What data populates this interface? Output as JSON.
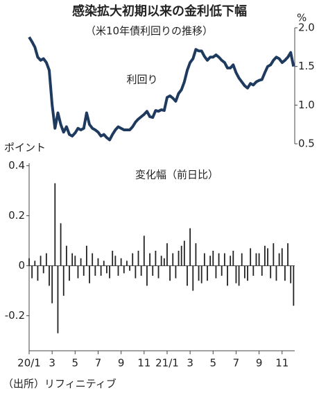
{
  "chart_data": [
    {
      "type": "line",
      "title": "感染拡大初期以来の金利低下幅",
      "subtitle": "（米10年債利回りの推移）",
      "label": "利回り",
      "y_unit": "%",
      "color": "#1f3a5f",
      "y_axis_side": "right",
      "x": [
        0,
        0.25,
        0.5,
        0.75,
        1,
        1.25,
        1.5,
        1.75,
        2,
        2.25,
        2.5,
        2.75,
        3,
        3.25,
        3.5,
        3.75,
        4,
        4.25,
        4.5,
        4.75,
        5,
        5.25,
        5.5,
        5.75,
        6,
        6.25,
        6.5,
        6.75,
        7,
        7.25,
        7.5,
        7.75,
        8,
        8.25,
        8.5,
        8.75,
        9,
        9.25,
        9.5,
        9.75,
        10,
        10.25,
        10.5,
        10.75,
        11,
        11.25,
        11.5,
        11.75,
        12,
        12.25,
        12.5,
        12.75,
        13,
        13.25,
        13.5,
        13.75,
        14,
        14.25,
        14.5,
        14.75,
        15,
        15.25,
        15.5,
        15.75,
        16,
        16.25,
        16.5,
        16.75,
        17,
        17.25,
        17.5,
        17.75,
        18,
        18.25,
        18.5,
        18.75,
        19,
        19.25,
        19.5,
        19.75,
        20,
        20.25,
        20.5,
        20.75,
        21,
        21.25,
        21.5,
        21.75,
        22,
        22.25,
        22.5,
        22.75,
        23
      ],
      "values": [
        1.88,
        1.82,
        1.75,
        1.62,
        1.58,
        1.6,
        1.55,
        1.45,
        1.0,
        0.7,
        0.9,
        0.75,
        0.65,
        0.72,
        0.62,
        0.6,
        0.64,
        0.7,
        0.68,
        0.7,
        0.9,
        0.75,
        0.7,
        0.68,
        0.65,
        0.6,
        0.62,
        0.58,
        0.55,
        0.62,
        0.68,
        0.72,
        0.7,
        0.68,
        0.68,
        0.68,
        0.72,
        0.78,
        0.82,
        0.85,
        0.88,
        0.92,
        0.85,
        0.84,
        0.93,
        0.92,
        0.94,
        0.93,
        1.1,
        1.12,
        1.09,
        1.05,
        1.15,
        1.2,
        1.3,
        1.45,
        1.55,
        1.6,
        1.72,
        1.7,
        1.7,
        1.63,
        1.58,
        1.62,
        1.62,
        1.65,
        1.62,
        1.58,
        1.55,
        1.48,
        1.48,
        1.52,
        1.42,
        1.35,
        1.3,
        1.25,
        1.22,
        1.28,
        1.26,
        1.3,
        1.32,
        1.33,
        1.42,
        1.5,
        1.52,
        1.58,
        1.62,
        1.6,
        1.55,
        1.58,
        1.62,
        1.68,
        1.5
      ],
      "xlim": [
        0,
        23.1
      ],
      "ylim": [
        0.5,
        2.0
      ],
      "yticks": [
        0.5,
        {
          "value": 1,
          "label": "1.0"
        },
        1.5,
        {
          "value": 2,
          "label": "2.0"
        }
      ]
    },
    {
      "type": "bar",
      "label": "変化幅（前日比）",
      "y_unit": "ポイント",
      "color": "#222222",
      "x": [
        0,
        0.25,
        0.5,
        0.75,
        1,
        1.25,
        1.5,
        1.75,
        2,
        2.25,
        2.5,
        2.75,
        3,
        3.25,
        3.5,
        3.75,
        4,
        4.25,
        4.5,
        4.75,
        5,
        5.25,
        5.5,
        5.75,
        6,
        6.25,
        6.5,
        6.75,
        7,
        7.25,
        7.5,
        7.75,
        8,
        8.25,
        8.5,
        8.75,
        9,
        9.25,
        9.5,
        9.75,
        10,
        10.25,
        10.5,
        10.75,
        11,
        11.25,
        11.5,
        11.75,
        12,
        12.25,
        12.5,
        12.75,
        13,
        13.25,
        13.5,
        13.75,
        14,
        14.25,
        14.5,
        14.75,
        15,
        15.25,
        15.5,
        15.75,
        16,
        16.25,
        16.5,
        16.75,
        17,
        17.25,
        17.5,
        17.75,
        18,
        18.25,
        18.5,
        18.75,
        19,
        19.25,
        19.5,
        19.75,
        20,
        20.25,
        20.5,
        20.75,
        21,
        21.25,
        21.5,
        21.75,
        22,
        22.25,
        22.5,
        22.75,
        23
      ],
      "values": [
        0.03,
        -0.05,
        0.02,
        -0.06,
        0.04,
        -0.03,
        0.05,
        -0.08,
        -0.15,
        0.33,
        -0.27,
        0.17,
        -0.12,
        0.08,
        -0.06,
        0.05,
        0.04,
        -0.05,
        0.03,
        -0.04,
        0.08,
        -0.07,
        0.05,
        -0.04,
        0.03,
        -0.04,
        0.02,
        -0.03,
        -0.05,
        0.06,
        0.04,
        -0.04,
        0.03,
        -0.03,
        0.02,
        -0.02,
        0.05,
        -0.05,
        0.06,
        -0.04,
        0.12,
        -0.08,
        0.05,
        -0.04,
        0.06,
        -0.05,
        0.04,
        0.03,
        0.09,
        -0.06,
        0.05,
        -0.05,
        0.06,
        0.08,
        0.1,
        -0.08,
        0.15,
        -0.1,
        0.09,
        -0.06,
        -0.07,
        0.05,
        -0.06,
        0.04,
        0.06,
        -0.05,
        0.05,
        -0.04,
        0.05,
        -0.08,
        0.04,
        0.06,
        -0.07,
        -0.08,
        0.05,
        -0.05,
        -0.06,
        0.07,
        -0.04,
        0.05,
        0.05,
        -0.04,
        0.08,
        0.07,
        -0.05,
        0.09,
        -0.06,
        0.05,
        0.07,
        -0.06,
        0.09,
        -0.07,
        -0.16
      ],
      "xlim": [
        0,
        23.1
      ],
      "ylim": [
        -0.34,
        0.41
      ],
      "xticks": [
        {
          "value": 0,
          "label": "20/1"
        },
        {
          "value": 2,
          "label": "3"
        },
        {
          "value": 4,
          "label": "5"
        },
        {
          "value": 6,
          "label": "7"
        },
        {
          "value": 8,
          "label": "9"
        },
        {
          "value": 10,
          "label": "11"
        },
        {
          "value": 12,
          "label": "21/1"
        },
        {
          "value": 14,
          "label": "3"
        },
        {
          "value": 16,
          "label": "5"
        },
        {
          "value": 18,
          "label": "7"
        },
        {
          "value": 20,
          "label": "9"
        },
        {
          "value": 22,
          "label": "11"
        }
      ],
      "yticks": [
        -0.2,
        0,
        0.2,
        0.4
      ]
    }
  ],
  "source": "（出所）リフィニティブ"
}
